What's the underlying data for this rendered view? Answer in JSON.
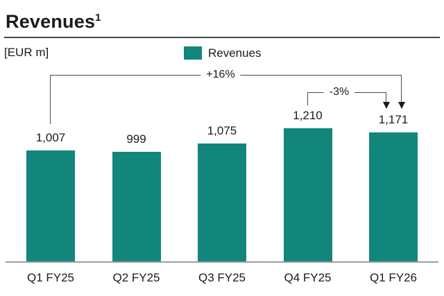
{
  "page": {
    "title": "Revenues",
    "title_superscript": "1",
    "unit_label": "[EUR m]"
  },
  "legend": {
    "label": "Revenues",
    "swatch_color": "#13867B"
  },
  "annotations": {
    "yoy_change_label": "+16%",
    "qoq_change_label": "-3%"
  },
  "colors": {
    "bar": "#13867B",
    "axis": "#9e9e9e",
    "rule": "#474747",
    "bracket_line": "#4a4a4a",
    "text": "#1a1a1a"
  },
  "chart_data": {
    "type": "bar",
    "title": "Revenues",
    "unit": "EUR m",
    "series_name": "Revenues",
    "categories": [
      "Q1 FY25",
      "Q2 FY25",
      "Q3 FY25",
      "Q4 FY25",
      "Q1 FY26"
    ],
    "values": [
      1007,
      999,
      1075,
      1210,
      1171
    ],
    "value_labels": [
      "1,007",
      "999",
      "1,075",
      "1,210",
      "1,171"
    ],
    "bar_color": "#13867B",
    "ylim": [
      0,
      1280
    ],
    "grid": false,
    "value_labels_shown": true,
    "legend_position": "top-center",
    "annotations": [
      {
        "label": "+16%",
        "from": "Q1 FY25",
        "to": "Q1 FY26",
        "type": "bracket-arrow"
      },
      {
        "label": "-3%",
        "from": "Q4 FY25",
        "to": "Q1 FY26",
        "type": "bracket-arrow"
      }
    ]
  }
}
